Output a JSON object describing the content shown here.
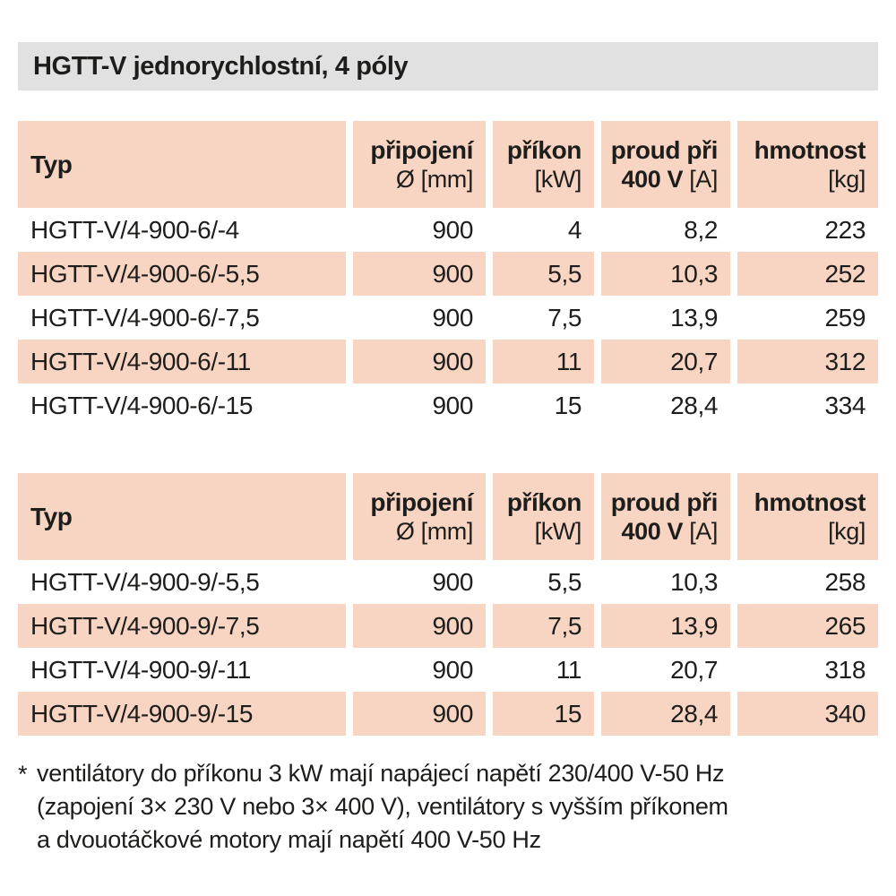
{
  "title_bar": {
    "title": "HGTT-V jednorychlostní, 4 póly"
  },
  "colors": {
    "peach": "#f8d4c2",
    "title_bar_gray": "#e1e1e1",
    "text": "#1d1d1b"
  },
  "tables": [
    {
      "header": {
        "typ": "Typ",
        "cols": [
          {
            "line1": "připojení",
            "line2": "Ø [mm]"
          },
          {
            "line1": "příkon",
            "line2": "[kW]"
          },
          {
            "line1": "proud při",
            "line2_bold": "400 V",
            "line2": "[A]"
          },
          {
            "line1": "hmotnost",
            "line2": "[kg]"
          }
        ]
      },
      "rows": [
        [
          "HGTT-V/4-900-6/-4",
          "900",
          "4",
          "8,2",
          "223"
        ],
        [
          "HGTT-V/4-900-6/-5,5",
          "900",
          "5,5",
          "10,3",
          "252"
        ],
        [
          "HGTT-V/4-900-6/-7,5",
          "900",
          "7,5",
          "13,9",
          "259"
        ],
        [
          "HGTT-V/4-900-6/-11",
          "900",
          "11",
          "20,7",
          "312"
        ],
        [
          "HGTT-V/4-900-6/-15",
          "900",
          "15",
          "28,4",
          "334"
        ]
      ]
    },
    {
      "header": {
        "typ": "Typ",
        "cols": [
          {
            "line1": "připojení",
            "line2": "Ø [mm]"
          },
          {
            "line1": "příkon",
            "line2": "[kW]"
          },
          {
            "line1": "proud při",
            "line2_bold": "400 V",
            "line2": "[A]"
          },
          {
            "line1": "hmotnost",
            "line2": "[kg]"
          }
        ]
      },
      "rows": [
        [
          "HGTT-V/4-900-9/-5,5",
          "900",
          "5,5",
          "10,3",
          "258"
        ],
        [
          "HGTT-V/4-900-9/-7,5",
          "900",
          "7,5",
          "13,9",
          "265"
        ],
        [
          "HGTT-V/4-900-9/-11",
          "900",
          "11",
          "20,7",
          "318"
        ],
        [
          "HGTT-V/4-900-9/-15",
          "900",
          "15",
          "28,4",
          "340"
        ]
      ]
    }
  ],
  "footnote": {
    "marker": "*",
    "lines": [
      "ventilátory do příkonu 3 kW mají napájecí napětí 230/400 V-50 Hz",
      "(zapojení 3× 230 V nebo 3× 400 V), ventilátory s vyšším příkonem",
      "a dvouotáčkové motory mají napětí 400 V-50 Hz"
    ]
  }
}
